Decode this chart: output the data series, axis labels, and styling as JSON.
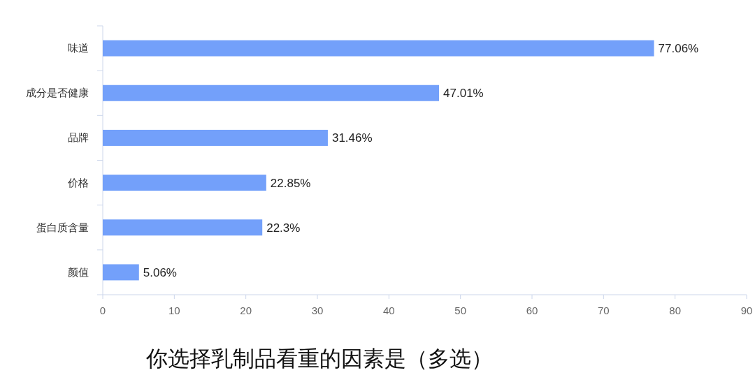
{
  "chart_data": {
    "type": "bar",
    "orientation": "horizontal",
    "title": "你选择乳制品看重的因素是（多选）",
    "categories": [
      "味道",
      "成分是否健康",
      "品牌",
      "价格",
      "蛋白质含量",
      "颜值"
    ],
    "values": [
      77.06,
      47.01,
      31.46,
      22.85,
      22.3,
      5.06
    ],
    "value_labels": [
      "77.06%",
      "47.01%",
      "31.46%",
      "22.85%",
      "22.3%",
      "5.06%"
    ],
    "color": "#73a0fa",
    "xlim": [
      0,
      90
    ],
    "xticks": [
      0,
      10,
      20,
      30,
      40,
      50,
      60,
      70,
      80,
      90
    ],
    "grid": false
  }
}
